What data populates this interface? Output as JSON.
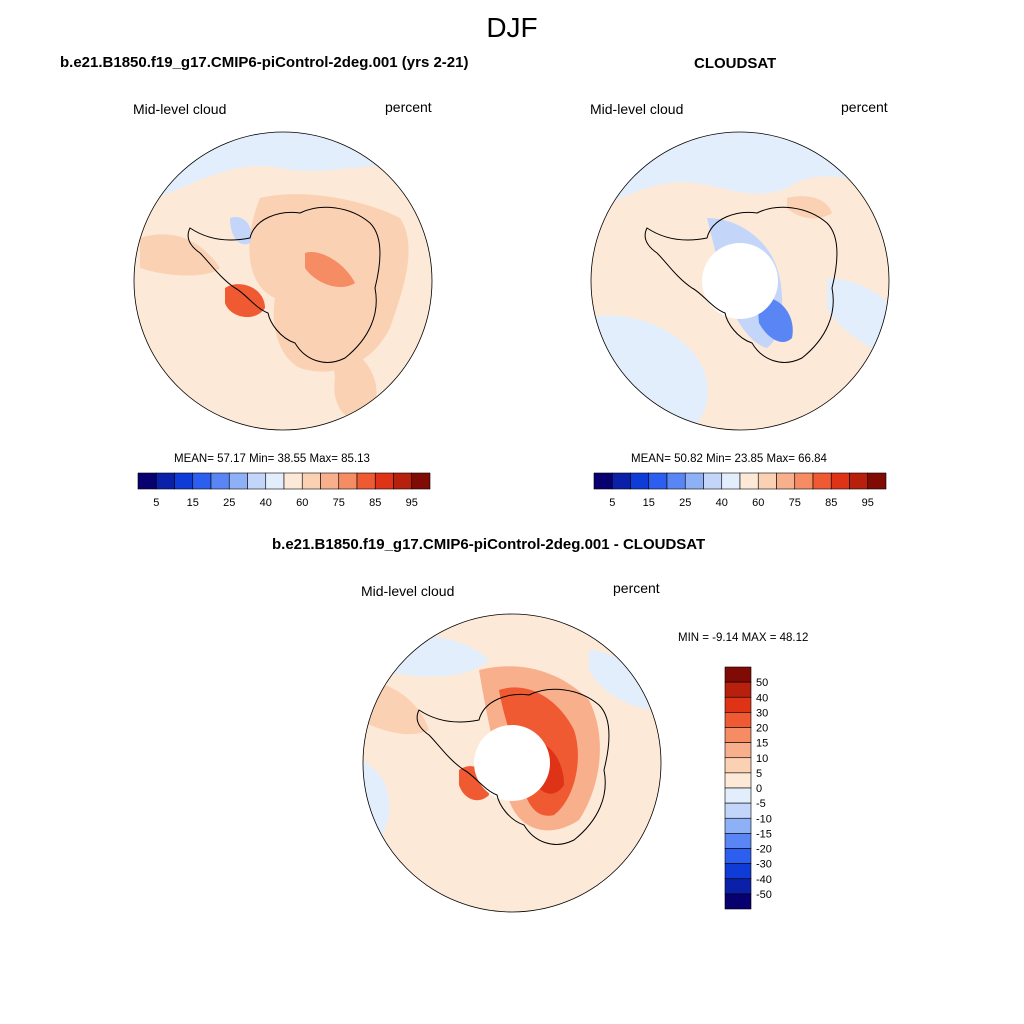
{
  "season": "DJF",
  "colors": {
    "abs_scale": [
      "#08006f",
      "#0b20a8",
      "#0f3bd6",
      "#2c5ff0",
      "#5a86f5",
      "#8eb0f7",
      "#c3d6fa",
      "#e3eefc",
      "#fde9d8",
      "#fbd1b4",
      "#f8b08c",
      "#f58c63",
      "#ef5a33",
      "#de3317",
      "#b6200c",
      "#800b04"
    ],
    "diff_scale": [
      "#08006f",
      "#0b20a8",
      "#0f3bd6",
      "#2c5ff0",
      "#5a86f5",
      "#8eb0f7",
      "#c3d6fa",
      "#e3eefc",
      "#fde9d8",
      "#fbd1b4",
      "#f8b08c",
      "#f58c63",
      "#ef5a33",
      "#de3317",
      "#b6200c",
      "#800b04"
    ]
  },
  "chart_data": [
    {
      "type": "heatmap",
      "title": "b.e21.B1850.f19_g17.CMIP6-piControl-2deg.001 (yrs 2-21)",
      "left_label": "Mid-level cloud",
      "right_label": "percent",
      "projection": "south-polar-stereographic",
      "stats_text": "MEAN=  57.17  Min=  38.55  Max=  85.13",
      "mean": 57.17,
      "min": 38.55,
      "max": 85.13,
      "colorbar": {
        "tick_labels": [
          "5",
          "15",
          "25",
          "40",
          "60",
          "75",
          "85",
          "95"
        ],
        "tick_values": [
          5,
          15,
          25,
          40,
          60,
          75,
          85,
          95
        ]
      }
    },
    {
      "type": "heatmap",
      "title": "CLOUDSAT",
      "left_label": "Mid-level cloud",
      "right_label": "percent",
      "projection": "south-polar-stereographic",
      "stats_text": "MEAN=  50.82  Min=  23.85  Max=  66.84",
      "mean": 50.82,
      "min": 23.85,
      "max": 66.84,
      "colorbar": {
        "tick_labels": [
          "5",
          "15",
          "25",
          "40",
          "60",
          "75",
          "85",
          "95"
        ],
        "tick_values": [
          5,
          15,
          25,
          40,
          60,
          75,
          85,
          95
        ]
      }
    },
    {
      "type": "heatmap",
      "title": "b.e21.B1850.f19_g17.CMIP6-piControl-2deg.001 - CLOUDSAT",
      "left_label": "Mid-level cloud",
      "right_label": "percent",
      "projection": "south-polar-stereographic",
      "stats_text": "MIN =  -9.14 MAX =  48.12",
      "min": -9.14,
      "max": 48.12,
      "colorbar": {
        "orientation": "vertical",
        "tick_labels": [
          "50",
          "40",
          "30",
          "20",
          "15",
          "10",
          "5",
          "0",
          "-5",
          "-10",
          "-15",
          "-20",
          "-30",
          "-40",
          "-50"
        ],
        "tick_values": [
          50,
          40,
          30,
          20,
          15,
          10,
          5,
          0,
          -5,
          -10,
          -15,
          -20,
          -30,
          -40,
          -50
        ]
      }
    }
  ]
}
